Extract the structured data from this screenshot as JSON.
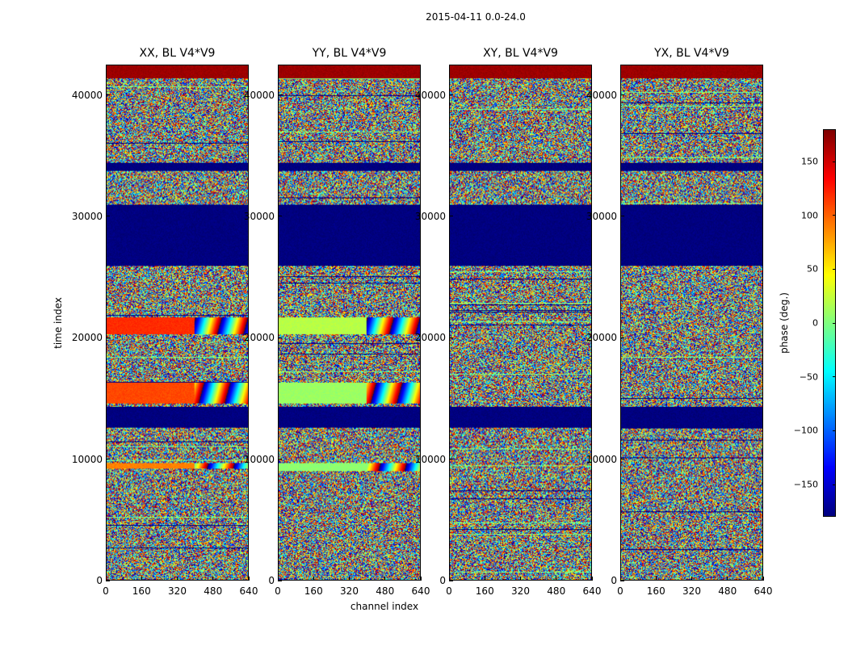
{
  "figure": {
    "suptitle": "2015-04-11 0.0-24.0"
  },
  "chart_data": {
    "type": "heatmap",
    "title": "2015-04-11 0.0-24.0",
    "xlabel": "channel index",
    "ylabel": "time index",
    "xlim": [
      0,
      640
    ],
    "ylim": [
      0,
      42500
    ],
    "x_ticks": [
      "0",
      "160",
      "320",
      "480",
      "640"
    ],
    "x_tick_values": [
      0,
      160,
      320,
      480,
      640
    ],
    "y_ticks": [
      "0",
      "10000",
      "20000",
      "30000",
      "40000"
    ],
    "y_tick_values": [
      0,
      10000,
      20000,
      30000,
      40000
    ],
    "panels": [
      {
        "title": "XX, BL V4*V9",
        "pol": "XX"
      },
      {
        "title": "YY, BL V4*V9",
        "pol": "YY"
      },
      {
        "title": "XY, BL V4*V9",
        "pol": "XY"
      },
      {
        "title": "YX, BL V4*V9",
        "pol": "YX"
      }
    ],
    "colorbar": {
      "label": "phase (deg.)",
      "range": [
        -180,
        180
      ],
      "tick_labels": [
        "−150",
        "−100",
        "−50",
        "0",
        "50",
        "100",
        "150"
      ],
      "tick_values": [
        -150,
        -100,
        -50,
        0,
        50,
        100,
        150
      ],
      "colormap": "jet"
    },
    "bands": [
      {
        "from": 41500,
        "to": 42500,
        "kind": "flat",
        "phase": 170,
        "applies": [
          "XX",
          "YY",
          "XY",
          "YX"
        ]
      },
      {
        "from": 33800,
        "to": 34500,
        "kind": "flat",
        "phase": -180,
        "applies": [
          "XX",
          "YY",
          "XY",
          "YX"
        ]
      },
      {
        "from": 26000,
        "to": 31000,
        "kind": "flat",
        "phase": -180,
        "applies": [
          "XX",
          "YY",
          "XY",
          "YX"
        ]
      },
      {
        "from": 12600,
        "to": 14300,
        "kind": "flat",
        "phase": -180,
        "applies": [
          "XX",
          "YY",
          "XY",
          "YX"
        ]
      },
      {
        "from": 20300,
        "to": 21700,
        "kind": "flat",
        "phase": 120,
        "applies": [
          "XX"
        ]
      },
      {
        "from": 20300,
        "to": 21700,
        "kind": "flat",
        "phase": 20,
        "applies": [
          "YY"
        ]
      },
      {
        "from": 14600,
        "to": 16300,
        "kind": "flat",
        "phase": 110,
        "applies": [
          "XX"
        ]
      },
      {
        "from": 14600,
        "to": 16300,
        "kind": "flat",
        "phase": 10,
        "applies": [
          "YY"
        ]
      },
      {
        "from": 9200,
        "to": 9700,
        "kind": "flat",
        "phase": 90,
        "applies": [
          "XX"
        ]
      },
      {
        "from": 9000,
        "to": 9700,
        "kind": "flat",
        "phase": 5,
        "applies": [
          "YY"
        ]
      }
    ]
  }
}
